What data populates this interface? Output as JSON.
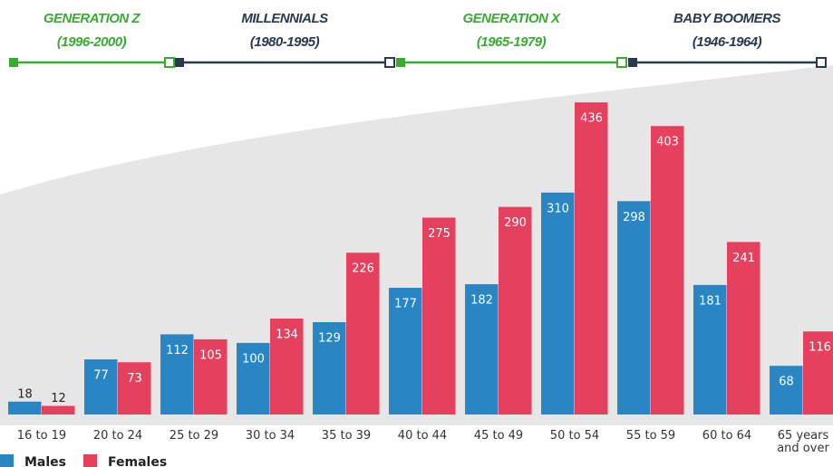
{
  "timeline": [
    {
      "name": "GENERATION Z",
      "years": "(1996-2000)",
      "color": "#3aaa35"
    },
    {
      "name": "MILLENNIALS",
      "years": "(1980-1995)",
      "color": "#2b3a4a"
    },
    {
      "name": "GENERATION X",
      "years": "(1965-1979)",
      "color": "#3aaa35"
    },
    {
      "name": "BABY BOOMERS",
      "years": "(1946-1964)",
      "color": "#2b3a4a"
    }
  ],
  "chart_data": {
    "type": "bar",
    "categories": [
      "16 to 19",
      "20 to 24",
      "25 to 29",
      "30 to 34",
      "35 to 39",
      "40 to 44",
      "45 to 49",
      "50 to 54",
      "55 to 59",
      "60 to 64",
      "65 years and over"
    ],
    "series": [
      {
        "name": "Males",
        "color": "#2a85c3",
        "values": [
          18,
          77,
          112,
          100,
          129,
          177,
          182,
          310,
          298,
          181,
          68
        ]
      },
      {
        "name": "Females",
        "color": "#e6405f",
        "values": [
          12,
          73,
          105,
          134,
          226,
          275,
          290,
          436,
          403,
          241,
          116
        ]
      }
    ],
    "legend": "bottom-left"
  }
}
